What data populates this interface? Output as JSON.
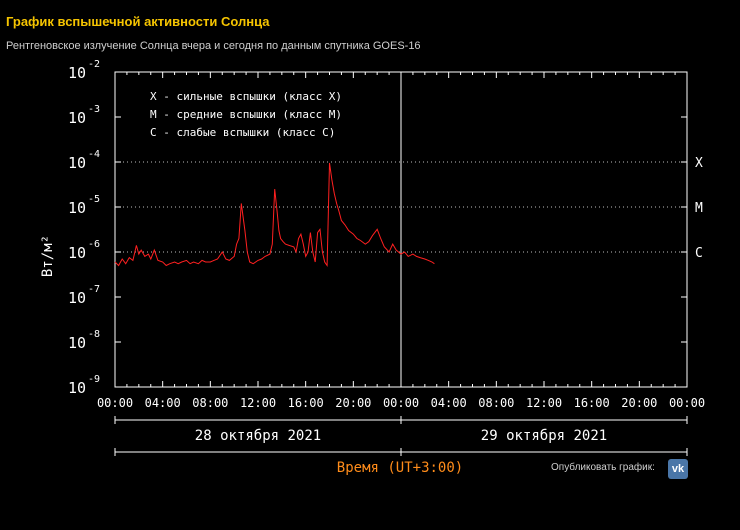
{
  "header": {
    "title": "График вспышечной активности Солнца",
    "subtitle": "Рентгеновское излучение Солнца вчера и сегодня по данным спутника GOES-16"
  },
  "footer": {
    "publish_label": "Опубликовать график:",
    "vk_label": "vk"
  },
  "icons": {
    "vk": "vk-logo-icon"
  },
  "colors": {
    "background": "#000000",
    "series": "#ff2020",
    "title": "#f5c400",
    "xlabel": "#ff8c1a",
    "axis": "#ffffff"
  },
  "chart_data": {
    "type": "line",
    "xlabel": "Время (UT+3:00)",
    "ylabel": "Вт/м²",
    "yscale": "log",
    "ylim": [
      1e-09,
      0.01
    ],
    "xlim": [
      0,
      48
    ],
    "grid": "dotted at flare class thresholds",
    "x_ticks": [
      "00:00",
      "04:00",
      "08:00",
      "12:00",
      "16:00",
      "20:00",
      "00:00",
      "04:00",
      "08:00",
      "12:00",
      "16:00",
      "20:00",
      "00:00"
    ],
    "y_ticks": [
      "-9",
      "-8",
      "-7",
      "-6",
      "-5",
      "-4",
      "-3",
      "-2"
    ],
    "y_tick_base": "10",
    "dates": [
      "28 октября 2021",
      "29 октября 2021"
    ],
    "class_markers": [
      {
        "label": "X",
        "value": 0.0001
      },
      {
        "label": "M",
        "value": 1e-05
      },
      {
        "label": "C",
        "value": 1e-06
      }
    ],
    "legend": [
      "X - сильные вспышки (класс X)",
      "M - средние вспышки (класс M)",
      "C - слабые вспышки (класс C)"
    ],
    "legend_position": "top-left",
    "series": [
      {
        "x": [
          0,
          0.3,
          0.6,
          0.9,
          1.2,
          1.5,
          1.8,
          2.0,
          2.2,
          2.5,
          2.8,
          3.0,
          3.3,
          3.6,
          4.0,
          4.3,
          4.6,
          5.0,
          5.3,
          5.6,
          6.0,
          6.3,
          6.6,
          7.0,
          7.3,
          7.6,
          8.0,
          8.3,
          8.6,
          9.0,
          9.3,
          9.6,
          10.0,
          10.2,
          10.4,
          10.6,
          10.75,
          10.9,
          11.1,
          11.3,
          11.6,
          12.0,
          12.3,
          12.6,
          13.0,
          13.2,
          13.4,
          13.6,
          13.75,
          13.9,
          14.1,
          14.3,
          14.6,
          15.0,
          15.2,
          15.4,
          15.6,
          15.8,
          16.0,
          16.2,
          16.4,
          16.6,
          16.8,
          17.0,
          17.2,
          17.4,
          17.6,
          17.8,
          18.0,
          18.2,
          18.4,
          18.6,
          18.8,
          19.0,
          19.3,
          19.6,
          20.0,
          20.3,
          20.6,
          21.0,
          21.3,
          21.6,
          22.0,
          22.3,
          22.6,
          23.0,
          23.3,
          23.6,
          24.0,
          24.3,
          24.6,
          25.0,
          25.3,
          25.6,
          26.0,
          26.3,
          26.6,
          26.8
        ],
        "y": [
          6e-07,
          5e-07,
          7e-07,
          5.5e-07,
          7.5e-07,
          6.5e-07,
          1.4e-06,
          9e-07,
          1.1e-06,
          8e-07,
          9e-07,
          7e-07,
          1.1e-06,
          6.5e-07,
          6e-07,
          5e-07,
          5.5e-07,
          6e-07,
          5.5e-07,
          6e-07,
          6.5e-07,
          5.5e-07,
          6e-07,
          5.5e-07,
          6.5e-07,
          6e-07,
          6e-07,
          6.5e-07,
          7e-07,
          1e-06,
          7e-07,
          6.5e-07,
          8e-07,
          1.5e-06,
          2e-06,
          1.2e-05,
          6e-06,
          3e-06,
          1e-06,
          6e-07,
          5.5e-07,
          6.5e-07,
          7e-07,
          8e-07,
          9e-07,
          1.5e-06,
          2.5e-05,
          8e-06,
          3e-06,
          2e-06,
          1.7e-06,
          1.5e-06,
          1.4e-06,
          1.3e-06,
          1e-06,
          2e-06,
          2.5e-06,
          1.5e-06,
          8e-07,
          1e-06,
          2.7e-06,
          1e-06,
          6e-07,
          2.7e-06,
          3.2e-06,
          1e-06,
          6e-07,
          5e-07,
          9.5e-05,
          4e-05,
          2e-05,
          1.2e-05,
          8e-06,
          5e-06,
          4e-06,
          3e-06,
          2.5e-06,
          2e-06,
          1.8e-06,
          1.5e-06,
          1.7e-06,
          2.3e-06,
          3.2e-06,
          2e-06,
          1.3e-06,
          1e-06,
          1.5e-06,
          1.1e-06,
          9e-07,
          1e-06,
          8e-07,
          9e-07,
          8e-07,
          7.5e-07,
          7e-07,
          6.5e-07,
          6e-07,
          5.5e-07
        ]
      }
    ]
  }
}
